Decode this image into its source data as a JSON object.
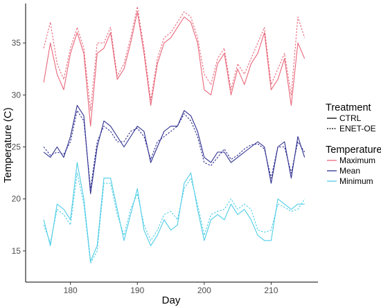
{
  "chart_data": {
    "type": "line",
    "xlabel": "Day",
    "ylabel": "Temperature (C)",
    "xlim": [
      173.3,
      217.0
    ],
    "ylim": [
      12.0,
      38.8
    ],
    "xticks": [
      180,
      190,
      200,
      210
    ],
    "yticks": [
      15,
      20,
      25,
      30,
      35
    ],
    "grid": false,
    "legend_position": "right",
    "legends": [
      {
        "title": "Treatment",
        "items": [
          {
            "label": "CTRL",
            "dash": "solid",
            "color": "#000000"
          },
          {
            "label": "ENET-OE",
            "dash": "dotted",
            "color": "#000000"
          }
        ]
      },
      {
        "title": "Temperature",
        "items": [
          {
            "label": "Maximum",
            "color": "#e8677a"
          },
          {
            "label": "Mean",
            "color": "#2e2f8f"
          },
          {
            "label": "Minimum",
            "color": "#4fcde6"
          }
        ]
      }
    ],
    "x": [
      176,
      177,
      178,
      179,
      180,
      181,
      182,
      183,
      184,
      185,
      186,
      187,
      188,
      189,
      190,
      191,
      192,
      193,
      194,
      195,
      196,
      197,
      198,
      199,
      200,
      201,
      202,
      203,
      204,
      205,
      206,
      207,
      208,
      209,
      210,
      211,
      212,
      213,
      214,
      215
    ],
    "series": [
      {
        "temperature": "Maximum",
        "treatment": "CTRL",
        "color": "#e8677a",
        "dash": "solid",
        "values": [
          31.2,
          35.0,
          32.0,
          30.5,
          34.0,
          36.0,
          34.0,
          27.0,
          34.0,
          34.5,
          36.0,
          31.5,
          32.5,
          35.0,
          38.0,
          34.0,
          29.0,
          33.0,
          35.0,
          35.5,
          36.5,
          37.5,
          37.0,
          35.0,
          30.5,
          30.0,
          33.0,
          34.0,
          30.0,
          32.5,
          31.0,
          33.0,
          34.0,
          36.0,
          30.5,
          31.5,
          33.5,
          29.0,
          35.0,
          33.5
        ]
      },
      {
        "temperature": "Maximum",
        "treatment": "ENET-OE",
        "color": "#e8677a",
        "dash": "dotted",
        "values": [
          34.5,
          37.0,
          33.0,
          31.5,
          34.5,
          36.5,
          34.5,
          28.5,
          35.0,
          35.0,
          36.5,
          31.8,
          33.0,
          35.5,
          38.5,
          34.5,
          29.5,
          33.5,
          35.5,
          36.0,
          37.0,
          38.0,
          37.5,
          35.5,
          32.0,
          31.0,
          33.5,
          34.5,
          30.5,
          33.0,
          32.0,
          33.5,
          35.0,
          36.5,
          31.0,
          32.5,
          34.0,
          30.0,
          37.5,
          35.5
        ]
      },
      {
        "temperature": "Mean",
        "treatment": "CTRL",
        "color": "#2e2f8f",
        "dash": "solid",
        "values": [
          24.5,
          24.0,
          25.0,
          24.0,
          26.0,
          29.0,
          28.0,
          20.5,
          25.0,
          27.5,
          27.0,
          26.0,
          25.0,
          26.0,
          27.0,
          26.5,
          23.5,
          25.0,
          26.5,
          27.0,
          27.0,
          28.5,
          28.0,
          26.5,
          24.0,
          23.5,
          24.5,
          24.5,
          23.5,
          24.0,
          24.5,
          25.0,
          25.5,
          25.0,
          21.5,
          25.0,
          25.5,
          22.0,
          26.0,
          24.0
        ]
      },
      {
        "temperature": "Mean",
        "treatment": "ENET-OE",
        "color": "#2e2f8f",
        "dash": "dotted",
        "values": [
          25.0,
          24.2,
          24.5,
          24.3,
          25.5,
          28.5,
          27.5,
          21.0,
          25.5,
          27.0,
          26.5,
          25.5,
          25.5,
          26.5,
          26.8,
          26.0,
          23.8,
          25.5,
          26.0,
          26.5,
          27.0,
          28.2,
          27.5,
          26.0,
          23.5,
          23.2,
          24.0,
          24.8,
          23.8,
          24.2,
          24.8,
          25.2,
          25.3,
          24.8,
          22.0,
          25.0,
          25.0,
          22.5,
          25.5,
          24.5
        ]
      },
      {
        "temperature": "Minimum",
        "treatment": "CTRL",
        "color": "#4fcde6",
        "dash": "solid",
        "values": [
          18.0,
          15.5,
          19.5,
          19.0,
          18.0,
          23.5,
          20.0,
          14.0,
          15.5,
          22.0,
          22.0,
          19.0,
          16.0,
          18.5,
          21.0,
          17.0,
          15.5,
          16.5,
          18.0,
          17.0,
          17.5,
          21.5,
          22.5,
          19.0,
          16.0,
          18.0,
          18.5,
          18.0,
          19.5,
          18.5,
          19.0,
          18.0,
          16.5,
          16.0,
          16.0,
          20.0,
          19.5,
          19.0,
          19.5,
          19.5
        ]
      },
      {
        "temperature": "Minimum",
        "treatment": "ENET-OE",
        "color": "#4fcde6",
        "dash": "dotted",
        "values": [
          17.5,
          15.8,
          19.0,
          18.5,
          17.5,
          22.5,
          19.5,
          13.8,
          15.0,
          21.5,
          21.5,
          18.5,
          16.5,
          19.0,
          20.5,
          17.5,
          16.0,
          17.0,
          18.5,
          18.8,
          18.0,
          21.0,
          22.0,
          19.5,
          16.5,
          18.5,
          18.8,
          19.0,
          20.0,
          19.0,
          19.5,
          19.0,
          17.0,
          16.8,
          17.0,
          19.5,
          19.2,
          18.8,
          19.0,
          20.0
        ]
      }
    ]
  }
}
